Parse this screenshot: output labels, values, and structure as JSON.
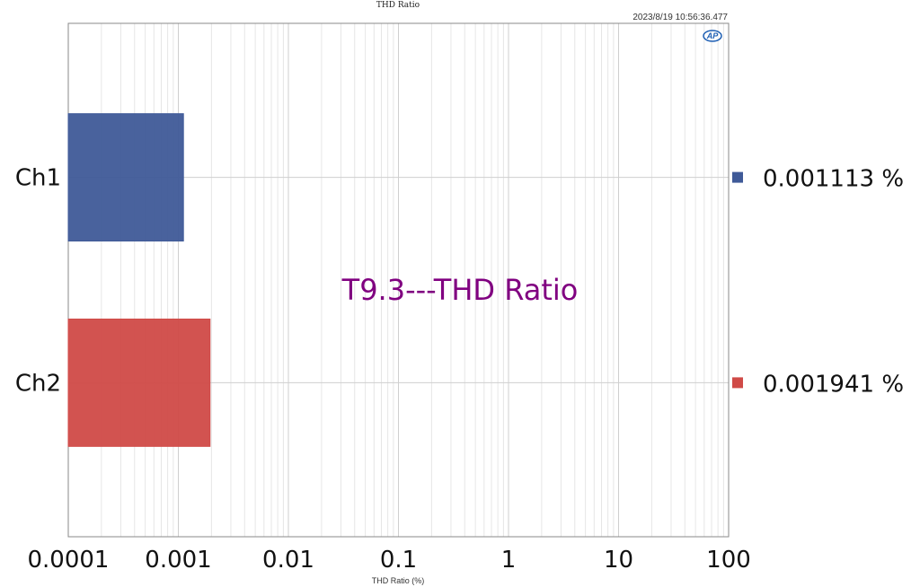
{
  "chart_data": {
    "type": "bar",
    "orientation": "horizontal",
    "title": "THD Ratio",
    "timestamp": "2023/8/19 10:56:36.477",
    "annotation": "T9.3---THD Ratio",
    "xlabel": "THD Ratio (%)",
    "xscale": "log",
    "xlim": [
      0.0001,
      100
    ],
    "x_ticks": [
      "0.0001",
      "0.001",
      "0.01",
      "0.1",
      "1",
      "10",
      "100"
    ],
    "grid": true,
    "categories": [
      "Ch1",
      "Ch2"
    ],
    "values": [
      0.001113,
      0.001941
    ],
    "value_labels": [
      "0.001113 %",
      "0.001941 %"
    ],
    "colors": [
      "#3f5a98",
      "#d04a47"
    ],
    "logo": "AP"
  }
}
